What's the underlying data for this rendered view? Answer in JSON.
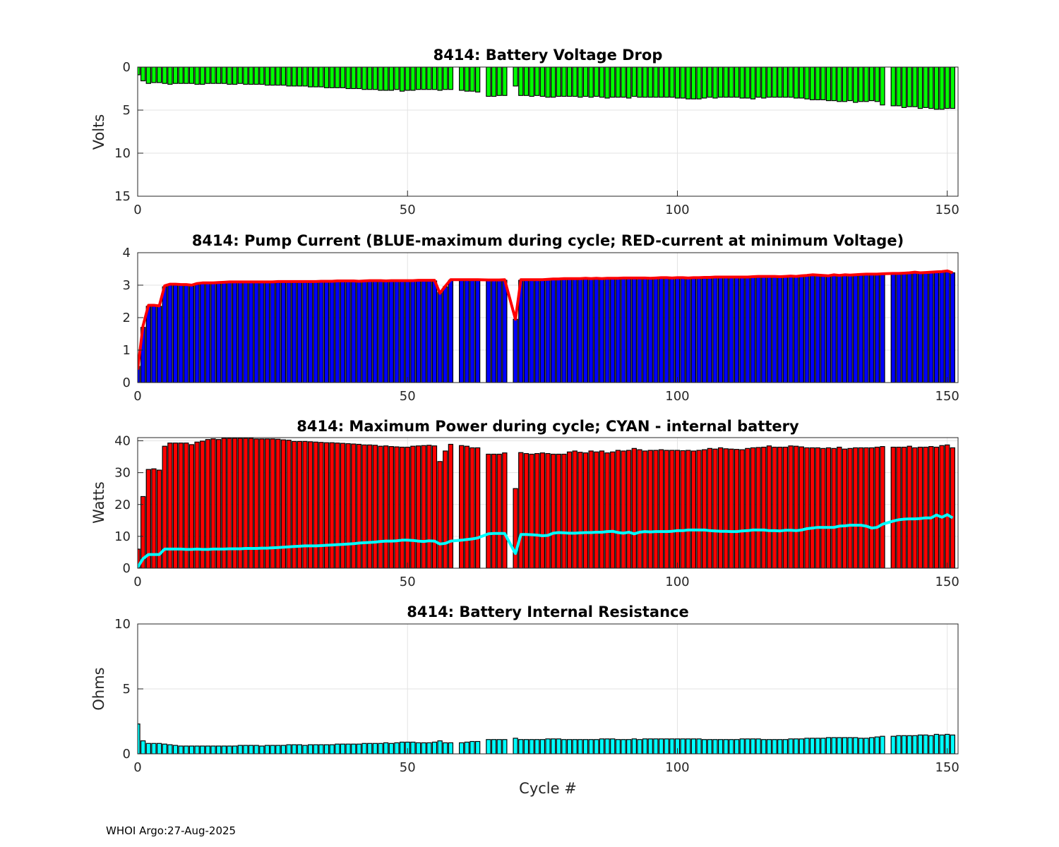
{
  "footer": "WHOI Argo:27-Aug-2025",
  "xlabel": "Cycle #",
  "chart_data": [
    {
      "type": "bar",
      "title": "8414: Battery Voltage Drop",
      "ylabel": "Volts",
      "xlim": [
        0,
        152
      ],
      "ylim": [
        0,
        15
      ],
      "y_reversed": true,
      "xticks": [
        0,
        50,
        100,
        150
      ],
      "yticks": [
        0,
        5,
        10,
        15
      ],
      "grid": true,
      "series": [
        {
          "name": "Voltage drop",
          "color": "#00ff00",
          "type": "bar",
          "values": [
            0.9,
            1.6,
            1.9,
            1.8,
            1.8,
            1.9,
            2.0,
            1.9,
            1.9,
            1.9,
            1.9,
            2.0,
            2.0,
            1.9,
            1.9,
            1.9,
            1.9,
            2.0,
            2.0,
            1.9,
            2.0,
            2.0,
            2.0,
            2.0,
            2.1,
            2.1,
            2.1,
            2.1,
            2.2,
            2.2,
            2.2,
            2.2,
            2.3,
            2.3,
            2.3,
            2.4,
            2.4,
            2.4,
            2.4,
            2.5,
            2.5,
            2.5,
            2.6,
            2.6,
            2.6,
            2.7,
            2.7,
            2.7,
            2.6,
            2.8,
            2.7,
            2.7,
            2.6,
            2.6,
            2.6,
            2.6,
            2.7,
            2.6,
            2.6,
            null,
            2.7,
            2.8,
            2.8,
            2.9,
            null,
            3.4,
            3.4,
            3.3,
            3.3,
            null,
            2.2,
            3.3,
            3.3,
            3.4,
            3.3,
            3.4,
            3.5,
            3.5,
            3.4,
            3.4,
            3.4,
            3.4,
            3.5,
            3.4,
            3.5,
            3.4,
            3.5,
            3.6,
            3.5,
            3.5,
            3.5,
            3.6,
            3.4,
            3.5,
            3.5,
            3.5,
            3.5,
            3.5,
            3.5,
            3.5,
            3.6,
            3.6,
            3.7,
            3.7,
            3.7,
            3.6,
            3.5,
            3.6,
            3.5,
            3.5,
            3.5,
            3.5,
            3.6,
            3.6,
            3.7,
            3.5,
            3.6,
            3.5,
            3.5,
            3.5,
            3.5,
            3.5,
            3.6,
            3.6,
            3.7,
            3.8,
            3.8,
            3.8,
            3.9,
            3.9,
            4.0,
            4.0,
            3.9,
            4.1,
            4.0,
            4.0,
            3.9,
            4.0,
            4.4,
            null,
            4.5,
            4.5,
            4.7,
            4.6,
            4.6,
            4.8,
            4.7,
            4.8,
            4.9,
            4.9,
            4.8,
            4.8
          ]
        }
      ]
    },
    {
      "type": "bar",
      "title": "8414: Pump Current (BLUE-maximum during cycle; RED-current at minimum Voltage)",
      "ylabel": "",
      "xlim": [
        0,
        152
      ],
      "ylim": [
        0,
        4
      ],
      "xticks": [
        0,
        50,
        100,
        150
      ],
      "yticks": [
        0,
        1,
        2,
        3,
        4
      ],
      "grid": true,
      "series": [
        {
          "name": "maximum during cycle",
          "color": "#0000ff",
          "type": "bar",
          "values": [
            0.5,
            1.7,
            2.35,
            2.35,
            2.35,
            2.95,
            3.0,
            3.0,
            3.0,
            3.0,
            2.97,
            3.02,
            3.05,
            3.05,
            3.05,
            3.06,
            3.07,
            3.08,
            3.08,
            3.08,
            3.08,
            3.08,
            3.08,
            3.08,
            3.08,
            3.08,
            3.09,
            3.09,
            3.09,
            3.09,
            3.09,
            3.09,
            3.09,
            3.09,
            3.1,
            3.1,
            3.1,
            3.11,
            3.11,
            3.11,
            3.11,
            3.1,
            3.11,
            3.12,
            3.12,
            3.12,
            3.11,
            3.12,
            3.12,
            3.12,
            3.12,
            3.12,
            3.13,
            3.13,
            3.13,
            3.13,
            2.78,
            2.95,
            3.15,
            null,
            3.15,
            3.15,
            3.15,
            3.15,
            null,
            3.14,
            3.14,
            3.14,
            3.15,
            null,
            1.95,
            3.15,
            3.15,
            3.15,
            3.15,
            3.15,
            3.16,
            3.17,
            3.17,
            3.18,
            3.18,
            3.18,
            3.18,
            3.19,
            3.18,
            3.19,
            3.18,
            3.19,
            3.19,
            3.19,
            3.2,
            3.2,
            3.2,
            3.2,
            3.2,
            3.19,
            3.2,
            3.21,
            3.21,
            3.2,
            3.21,
            3.21,
            3.2,
            3.21,
            3.21,
            3.22,
            3.22,
            3.23,
            3.23,
            3.23,
            3.23,
            3.23,
            3.23,
            3.23,
            3.24,
            3.25,
            3.25,
            3.25,
            3.25,
            3.24,
            3.25,
            3.26,
            3.25,
            3.27,
            3.28,
            3.3,
            3.29,
            3.28,
            3.27,
            3.3,
            3.28,
            3.3,
            3.29,
            3.3,
            3.31,
            3.32,
            3.32,
            3.32,
            3.33,
            null,
            3.35,
            3.35,
            3.35,
            3.37,
            3.4,
            3.37,
            3.38,
            3.4,
            3.41,
            3.42,
            3.45,
            3.38
          ]
        },
        {
          "name": "current at minimum Voltage",
          "color": "#ff0000",
          "type": "line",
          "values": [
            0.4,
            1.75,
            2.38,
            2.38,
            2.36,
            2.98,
            3.03,
            3.03,
            3.02,
            3.02,
            3.0,
            3.05,
            3.07,
            3.07,
            3.07,
            3.08,
            3.09,
            3.1,
            3.1,
            3.1,
            3.1,
            3.1,
            3.1,
            3.1,
            3.1,
            3.1,
            3.11,
            3.11,
            3.11,
            3.11,
            3.11,
            3.11,
            3.11,
            3.11,
            3.12,
            3.12,
            3.12,
            3.13,
            3.13,
            3.13,
            3.13,
            3.12,
            3.13,
            3.14,
            3.14,
            3.14,
            3.13,
            3.14,
            3.14,
            3.14,
            3.14,
            3.14,
            3.15,
            3.15,
            3.15,
            3.15,
            2.75,
            2.97,
            3.17,
            null,
            3.17,
            3.17,
            3.17,
            3.17,
            null,
            3.16,
            3.16,
            3.16,
            3.17,
            null,
            1.95,
            3.17,
            3.17,
            3.17,
            3.17,
            3.17,
            3.18,
            3.19,
            3.19,
            3.2,
            3.2,
            3.2,
            3.2,
            3.21,
            3.2,
            3.21,
            3.2,
            3.21,
            3.21,
            3.21,
            3.22,
            3.22,
            3.22,
            3.22,
            3.22,
            3.21,
            3.22,
            3.23,
            3.23,
            3.22,
            3.23,
            3.23,
            3.22,
            3.23,
            3.23,
            3.24,
            3.24,
            3.25,
            3.25,
            3.25,
            3.25,
            3.25,
            3.25,
            3.25,
            3.26,
            3.27,
            3.27,
            3.27,
            3.27,
            3.26,
            3.27,
            3.28,
            3.27,
            3.29,
            3.3,
            3.32,
            3.31,
            3.3,
            3.29,
            3.32,
            3.3,
            3.32,
            3.31,
            3.32,
            3.33,
            3.34,
            3.34,
            3.34,
            3.35,
            null,
            3.36,
            3.36,
            3.37,
            3.38,
            3.4,
            3.38,
            3.39,
            3.4,
            3.41,
            3.42,
            3.44,
            3.38
          ]
        }
      ]
    },
    {
      "type": "bar",
      "title": "8414: Maximum Power during cycle; CYAN - internal battery",
      "ylabel": "Watts",
      "xlim": [
        0,
        152
      ],
      "ylim": [
        0,
        41
      ],
      "xticks": [
        0,
        50,
        100,
        150
      ],
      "yticks": [
        0,
        10,
        20,
        30,
        40
      ],
      "grid": true,
      "series": [
        {
          "name": "Maximum Power",
          "color": "#ff0000",
          "type": "bar",
          "values": [
            6,
            22.5,
            31,
            31.2,
            30.8,
            38.3,
            39.3,
            39.3,
            39.3,
            39.3,
            38.8,
            39.6,
            39.9,
            40.4,
            40.6,
            40.4,
            40.8,
            40.8,
            40.8,
            40.8,
            40.8,
            40.8,
            40.6,
            40.6,
            40.6,
            40.6,
            40.5,
            40.3,
            40.2,
            39.8,
            39.8,
            39.8,
            39.7,
            39.6,
            39.5,
            39.4,
            39.4,
            39.3,
            39.2,
            39.1,
            39.0,
            38.9,
            38.7,
            38.7,
            38.6,
            38.3,
            38.4,
            38.2,
            38.1,
            38.0,
            38.0,
            38.3,
            38.4,
            38.5,
            38.6,
            38.4,
            33.5,
            36.8,
            38.9,
            null,
            38.5,
            38.3,
            37.8,
            37.8,
            null,
            35.8,
            35.8,
            35.8,
            36.2,
            null,
            25.0,
            36.3,
            36.0,
            35.8,
            36.0,
            36.2,
            36.0,
            35.8,
            35.8,
            35.8,
            36.5,
            36.8,
            36.4,
            36.2,
            36.8,
            36.5,
            36.8,
            36.2,
            36.5,
            37.0,
            36.8,
            37.0,
            37.6,
            37.2,
            36.8,
            37.0,
            37.0,
            37.2,
            37.0,
            37.0,
            37.0,
            36.9,
            37.0,
            36.8,
            37.0,
            37.2,
            37.6,
            37.4,
            37.8,
            37.5,
            37.4,
            37.3,
            37.2,
            37.6,
            37.8,
            37.9,
            38.0,
            38.4,
            38.0,
            38.0,
            38.0,
            38.4,
            38.3,
            38.1,
            37.8,
            37.8,
            37.8,
            37.6,
            37.8,
            37.6,
            38.0,
            37.4,
            37.6,
            37.8,
            37.8,
            37.8,
            37.8,
            38.0,
            38.2,
            null,
            38.0,
            38.0,
            38.0,
            38.3,
            37.8,
            38.0,
            38.0,
            38.2,
            38.0,
            38.5,
            38.7,
            37.8
          ]
        },
        {
          "name": "internal battery",
          "color": "#00ffff",
          "type": "line",
          "values": [
            0.3,
            3.0,
            4.3,
            4.3,
            4.3,
            6.0,
            6.0,
            6.0,
            6.0,
            5.9,
            5.9,
            6.0,
            5.9,
            5.9,
            6.0,
            6.0,
            6.0,
            6.1,
            6.1,
            6.1,
            6.2,
            6.2,
            6.2,
            6.3,
            6.3,
            6.4,
            6.5,
            6.6,
            6.7,
            6.8,
            6.9,
            7.0,
            7.0,
            7.0,
            7.1,
            7.2,
            7.3,
            7.4,
            7.5,
            7.6,
            7.7,
            7.9,
            8.0,
            8.1,
            8.2,
            8.4,
            8.5,
            8.5,
            8.6,
            8.8,
            8.8,
            8.7,
            8.5,
            8.4,
            8.6,
            8.5,
            7.6,
            7.8,
            8.5,
            null,
            8.8,
            9.0,
            9.2,
            9.5,
            null,
            10.8,
            10.9,
            10.9,
            10.9,
            null,
            4.6,
            10.6,
            10.6,
            10.5,
            10.4,
            10.2,
            10.3,
            11.0,
            11.2,
            11.1,
            11.0,
            11.0,
            11.1,
            11.2,
            11.2,
            11.3,
            11.3,
            11.5,
            11.6,
            11.2,
            11.0,
            11.3,
            10.8,
            11.3,
            11.5,
            11.4,
            11.5,
            11.5,
            11.5,
            11.6,
            11.8,
            11.8,
            12.0,
            12.0,
            12.0,
            12.0,
            11.8,
            11.7,
            11.6,
            11.6,
            11.5,
            11.5,
            11.7,
            11.8,
            12.0,
            12.0,
            12.0,
            11.8,
            11.8,
            11.7,
            11.9,
            11.9,
            11.8,
            12.0,
            12.4,
            12.6,
            12.8,
            12.8,
            12.8,
            12.8,
            13.2,
            13.3,
            13.5,
            13.5,
            13.5,
            13.2,
            12.6,
            12.8,
            13.8,
            null,
            14.8,
            15.2,
            15.4,
            15.5,
            15.5,
            15.6,
            15.8,
            15.8,
            16.7,
            16.0,
            16.8,
            15.8
          ]
        }
      ]
    },
    {
      "type": "bar",
      "title": "8414: Battery Internal Resistance",
      "ylabel": "Ohms",
      "xlim": [
        0,
        152
      ],
      "ylim": [
        0,
        10
      ],
      "xticks": [
        0,
        50,
        100,
        150
      ],
      "yticks": [
        0,
        5,
        10
      ],
      "grid": true,
      "series": [
        {
          "name": "Internal Resistance",
          "color": "#00ffff",
          "type": "bar",
          "values": [
            2.3,
            1.0,
            0.8,
            0.8,
            0.8,
            0.75,
            0.7,
            0.65,
            0.6,
            0.6,
            0.6,
            0.6,
            0.6,
            0.6,
            0.6,
            0.6,
            0.6,
            0.6,
            0.6,
            0.65,
            0.65,
            0.65,
            0.65,
            0.6,
            0.65,
            0.65,
            0.65,
            0.65,
            0.7,
            0.7,
            0.7,
            0.65,
            0.7,
            0.7,
            0.7,
            0.7,
            0.7,
            0.75,
            0.75,
            0.75,
            0.75,
            0.75,
            0.8,
            0.8,
            0.8,
            0.8,
            0.85,
            0.8,
            0.85,
            0.9,
            0.9,
            0.9,
            0.85,
            0.85,
            0.85,
            0.9,
            1.0,
            0.85,
            0.85,
            null,
            0.85,
            0.9,
            0.95,
            0.95,
            null,
            1.1,
            1.1,
            1.1,
            1.1,
            null,
            1.2,
            1.1,
            1.1,
            1.1,
            1.1,
            1.1,
            1.15,
            1.15,
            1.15,
            1.1,
            1.1,
            1.1,
            1.1,
            1.1,
            1.1,
            1.1,
            1.15,
            1.15,
            1.15,
            1.1,
            1.1,
            1.1,
            1.15,
            1.1,
            1.15,
            1.15,
            1.15,
            1.15,
            1.15,
            1.15,
            1.15,
            1.15,
            1.15,
            1.15,
            1.15,
            1.1,
            1.1,
            1.1,
            1.1,
            1.1,
            1.1,
            1.1,
            1.15,
            1.15,
            1.15,
            1.15,
            1.1,
            1.1,
            1.1,
            1.1,
            1.1,
            1.15,
            1.15,
            1.15,
            1.2,
            1.2,
            1.2,
            1.2,
            1.25,
            1.25,
            1.25,
            1.25,
            1.25,
            1.25,
            1.2,
            1.2,
            1.25,
            1.3,
            1.35,
            null,
            1.35,
            1.4,
            1.4,
            1.4,
            1.4,
            1.45,
            1.45,
            1.4,
            1.5,
            1.45,
            1.5,
            1.45
          ]
        }
      ]
    }
  ]
}
